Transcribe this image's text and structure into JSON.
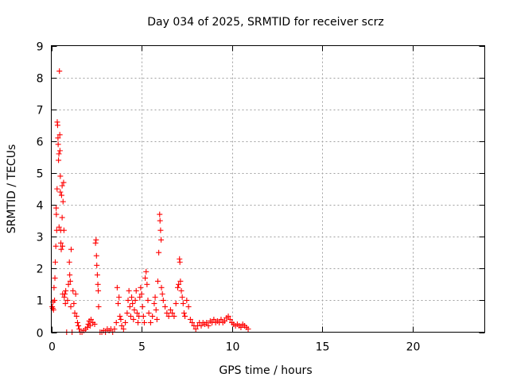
{
  "chart_data": {
    "type": "scatter",
    "title": "Day 034 of 2025, SRMTID for receiver scrz",
    "xlabel": "GPS time / hours",
    "ylabel": "SRMTID / TECUs",
    "xlim": [
      0,
      24
    ],
    "ylim": [
      0,
      9
    ],
    "xticks": [
      0,
      5,
      10,
      15,
      20
    ],
    "yticks": [
      0,
      1,
      2,
      3,
      4,
      5,
      6,
      7,
      8,
      9
    ],
    "grid": true,
    "marker": "+",
    "color": "#ff0000",
    "series": [
      {
        "name": "SRMTID",
        "points": [
          [
            0.05,
            0.8
          ],
          [
            0.08,
            0.75
          ],
          [
            0.1,
            0.95
          ],
          [
            0.12,
            0.7
          ],
          [
            0.15,
            1.4
          ],
          [
            0.18,
            1.0
          ],
          [
            0.2,
            1.7
          ],
          [
            0.22,
            2.2
          ],
          [
            0.25,
            2.7
          ],
          [
            0.27,
            3.9
          ],
          [
            0.28,
            3.7
          ],
          [
            0.3,
            3.2
          ],
          [
            0.32,
            4.5
          ],
          [
            0.33,
            6.6
          ],
          [
            0.35,
            6.5
          ],
          [
            0.37,
            6.1
          ],
          [
            0.38,
            5.9
          ],
          [
            0.4,
            5.4
          ],
          [
            0.42,
            5.6
          ],
          [
            0.43,
            3.3
          ],
          [
            0.45,
            8.2
          ],
          [
            0.47,
            6.2
          ],
          [
            0.48,
            5.7
          ],
          [
            0.5,
            4.9
          ],
          [
            0.5,
            4.4
          ],
          [
            0.52,
            3.2
          ],
          [
            0.53,
            2.8
          ],
          [
            0.55,
            2.6
          ],
          [
            0.57,
            4.3
          ],
          [
            0.6,
            4.6
          ],
          [
            0.6,
            3.6
          ],
          [
            0.62,
            2.7
          ],
          [
            0.63,
            1.2
          ],
          [
            0.65,
            4.1
          ],
          [
            0.68,
            4.7
          ],
          [
            0.7,
            3.2
          ],
          [
            0.72,
            1.1
          ],
          [
            0.75,
            1.2
          ],
          [
            0.78,
            0.9
          ],
          [
            0.8,
            1.3
          ],
          [
            0.85,
            0.0
          ],
          [
            0.9,
            1.0
          ],
          [
            0.95,
            1.5
          ],
          [
            1.0,
            2.2
          ],
          [
            1.02,
            1.8
          ],
          [
            1.05,
            1.6
          ],
          [
            1.08,
            0.8
          ],
          [
            1.1,
            2.6
          ],
          [
            1.15,
            0.0
          ],
          [
            1.2,
            1.3
          ],
          [
            1.25,
            0.9
          ],
          [
            1.3,
            0.6
          ],
          [
            1.35,
            1.2
          ],
          [
            1.4,
            0.5
          ],
          [
            1.45,
            0.3
          ],
          [
            1.5,
            0.2
          ],
          [
            1.55,
            0.1
          ],
          [
            1.6,
            0.0
          ],
          [
            1.7,
            0.0
          ],
          [
            1.8,
            0.05
          ],
          [
            1.9,
            0.1
          ],
          [
            2.0,
            0.15
          ],
          [
            2.05,
            0.25
          ],
          [
            2.1,
            0.35
          ],
          [
            2.15,
            0.2
          ],
          [
            2.2,
            0.4
          ],
          [
            2.3,
            0.3
          ],
          [
            2.4,
            0.25
          ],
          [
            2.45,
            2.8
          ],
          [
            2.48,
            2.9
          ],
          [
            2.5,
            2.4
          ],
          [
            2.52,
            2.1
          ],
          [
            2.55,
            1.8
          ],
          [
            2.58,
            1.5
          ],
          [
            2.6,
            1.3
          ],
          [
            2.62,
            0.8
          ],
          [
            2.7,
            0.0
          ],
          [
            2.8,
            0.0
          ],
          [
            2.9,
            0.05
          ],
          [
            3.0,
            0.0
          ],
          [
            3.1,
            0.1
          ],
          [
            3.2,
            0.05
          ],
          [
            3.3,
            0.1
          ],
          [
            3.4,
            0.0
          ],
          [
            3.5,
            0.1
          ],
          [
            3.6,
            0.3
          ],
          [
            3.65,
            1.4
          ],
          [
            3.7,
            0.9
          ],
          [
            3.75,
            1.1
          ],
          [
            3.8,
            0.5
          ],
          [
            3.85,
            0.4
          ],
          [
            3.9,
            0.2
          ],
          [
            4.0,
            0.1
          ],
          [
            4.1,
            0.3
          ],
          [
            4.2,
            0.6
          ],
          [
            4.25,
            1.0
          ],
          [
            4.3,
            1.3
          ],
          [
            4.35,
            0.8
          ],
          [
            4.4,
            0.5
          ],
          [
            4.45,
            1.1
          ],
          [
            4.5,
            0.9
          ],
          [
            4.55,
            0.4
          ],
          [
            4.6,
            0.7
          ],
          [
            4.65,
            1.0
          ],
          [
            4.7,
            1.3
          ],
          [
            4.75,
            0.6
          ],
          [
            4.8,
            0.3
          ],
          [
            4.85,
            0.5
          ],
          [
            4.9,
            1.1
          ],
          [
            4.95,
            1.4
          ],
          [
            5.0,
            1.2
          ],
          [
            5.05,
            0.8
          ],
          [
            5.1,
            0.5
          ],
          [
            5.15,
            0.3
          ],
          [
            5.2,
            1.7
          ],
          [
            5.25,
            1.9
          ],
          [
            5.3,
            1.5
          ],
          [
            5.35,
            1.0
          ],
          [
            5.4,
            0.6
          ],
          [
            5.5,
            0.3
          ],
          [
            5.6,
            0.5
          ],
          [
            5.7,
            0.9
          ],
          [
            5.75,
            1.1
          ],
          [
            5.8,
            0.7
          ],
          [
            5.85,
            0.4
          ],
          [
            5.9,
            1.6
          ],
          [
            5.95,
            2.5
          ],
          [
            6.0,
            3.7
          ],
          [
            6.02,
            3.5
          ],
          [
            6.05,
            3.2
          ],
          [
            6.08,
            2.9
          ],
          [
            6.1,
            1.4
          ],
          [
            6.15,
            1.2
          ],
          [
            6.2,
            1.0
          ],
          [
            6.3,
            0.8
          ],
          [
            6.4,
            0.6
          ],
          [
            6.5,
            0.5
          ],
          [
            6.6,
            0.7
          ],
          [
            6.7,
            0.6
          ],
          [
            6.8,
            0.5
          ],
          [
            6.9,
            0.9
          ],
          [
            7.0,
            1.4
          ],
          [
            7.05,
            1.5
          ],
          [
            7.1,
            2.3
          ],
          [
            7.12,
            2.2
          ],
          [
            7.15,
            1.6
          ],
          [
            7.2,
            1.3
          ],
          [
            7.25,
            1.1
          ],
          [
            7.3,
            0.9
          ],
          [
            7.35,
            0.6
          ],
          [
            7.4,
            0.5
          ],
          [
            7.5,
            1.0
          ],
          [
            7.6,
            0.8
          ],
          [
            7.7,
            0.4
          ],
          [
            7.8,
            0.3
          ],
          [
            7.9,
            0.2
          ],
          [
            8.0,
            0.1
          ],
          [
            8.1,
            0.2
          ],
          [
            8.2,
            0.3
          ],
          [
            8.3,
            0.2
          ],
          [
            8.4,
            0.3
          ],
          [
            8.5,
            0.25
          ],
          [
            8.6,
            0.3
          ],
          [
            8.7,
            0.2
          ],
          [
            8.8,
            0.35
          ],
          [
            8.9,
            0.3
          ],
          [
            9.0,
            0.4
          ],
          [
            9.1,
            0.3
          ],
          [
            9.2,
            0.35
          ],
          [
            9.3,
            0.3
          ],
          [
            9.4,
            0.4
          ],
          [
            9.5,
            0.3
          ],
          [
            9.6,
            0.35
          ],
          [
            9.7,
            0.45
          ],
          [
            9.8,
            0.5
          ],
          [
            9.9,
            0.4
          ],
          [
            10.0,
            0.3
          ],
          [
            10.1,
            0.25
          ],
          [
            10.2,
            0.2
          ],
          [
            10.3,
            0.25
          ],
          [
            10.4,
            0.2
          ],
          [
            10.5,
            0.15
          ],
          [
            10.6,
            0.25
          ],
          [
            10.7,
            0.2
          ],
          [
            10.8,
            0.15
          ],
          [
            10.9,
            0.1
          ]
        ]
      }
    ]
  }
}
